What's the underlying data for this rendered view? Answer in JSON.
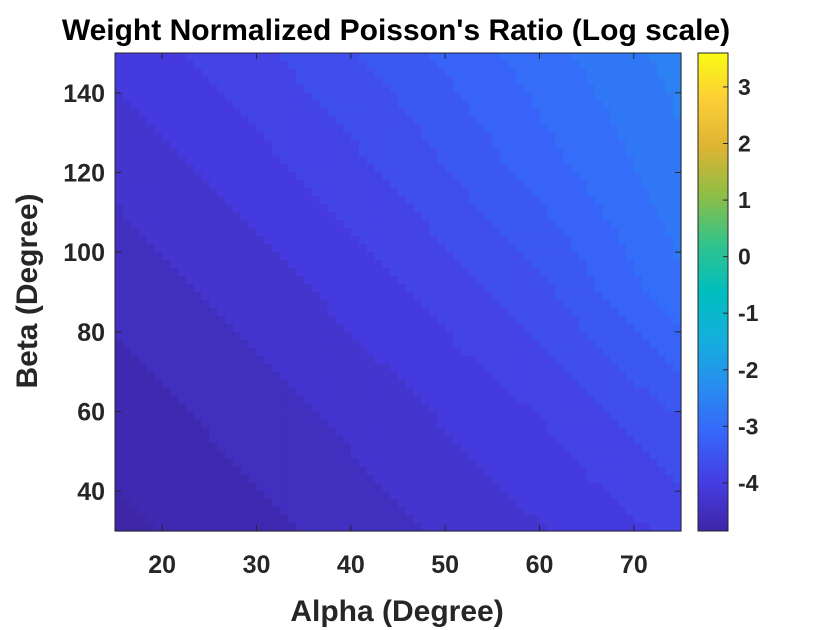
{
  "chart_data": {
    "type": "heatmap",
    "subtype": "filled-contour",
    "title": "Weight Normalized Poisson's Ratio (Log scale)",
    "xlabel": "Alpha (Degree)",
    "ylabel": "Beta (Degree)",
    "xlim": [
      15,
      75
    ],
    "ylim": [
      30,
      150
    ],
    "xticks": [
      20,
      30,
      40,
      50,
      60,
      70
    ],
    "yticks": [
      40,
      60,
      80,
      100,
      120,
      140
    ],
    "x": [
      15,
      30,
      45,
      60,
      75
    ],
    "y": [
      30,
      60,
      90,
      120,
      150
    ],
    "z": [
      [
        -4.9,
        -4.7,
        -4.45,
        -4.2,
        -3.9
      ],
      [
        -4.75,
        -4.5,
        -4.25,
        -3.95,
        -3.5
      ],
      [
        -4.55,
        -4.3,
        -4.0,
        -3.6,
        -2.9
      ],
      [
        -4.35,
        -4.05,
        -3.7,
        -3.2,
        -2.7
      ],
      [
        -4.1,
        -3.8,
        -3.4,
        -2.95,
        -2.55
      ]
    ],
    "colorbar": {
      "limits": [
        -4.85,
        3.6
      ],
      "ticks": [
        -4,
        -3,
        -2,
        -1,
        0,
        1,
        2,
        3
      ],
      "colormap": "parula"
    },
    "grid": false
  }
}
